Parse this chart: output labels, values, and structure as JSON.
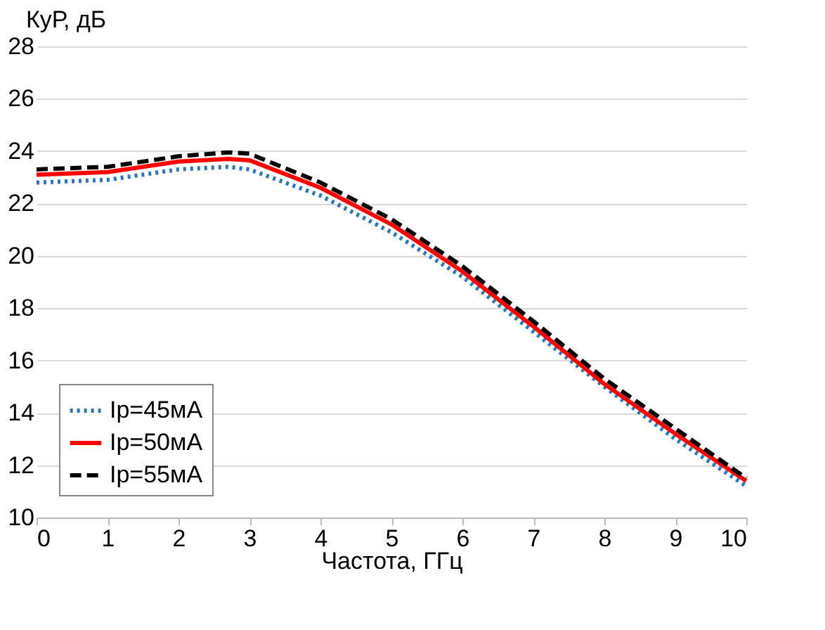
{
  "chart_data": {
    "type": "line",
    "xlabel": "Частота, ГГц",
    "ylabel": "КуР, дБ",
    "x": [
      0,
      1,
      2,
      2.7,
      3,
      4,
      5,
      6,
      7,
      8,
      9,
      10
    ],
    "series": [
      {
        "name": "Ip=45мА",
        "color": "#2e75b6",
        "line_style": "dotted",
        "values": [
          22.8,
          22.9,
          23.3,
          23.4,
          23.3,
          22.3,
          20.9,
          19.2,
          17.1,
          15.0,
          13.0,
          11.2
        ]
      },
      {
        "name": "Ip=50мА",
        "color": "#ff0000",
        "line_style": "solid",
        "values": [
          23.1,
          23.2,
          23.6,
          23.7,
          23.65,
          22.6,
          21.2,
          19.4,
          17.3,
          15.1,
          13.2,
          11.4
        ]
      },
      {
        "name": "Ip=55мА",
        "color": "#000000",
        "line_style": "dashed",
        "values": [
          23.3,
          23.4,
          23.8,
          23.95,
          23.9,
          22.8,
          21.4,
          19.6,
          17.5,
          15.3,
          13.4,
          11.5
        ]
      }
    ],
    "xlim": [
      0,
      10
    ],
    "xticks": [
      0,
      1,
      2,
      3,
      4,
      5,
      6,
      7,
      8,
      9,
      10
    ],
    "ylim": [
      10,
      28
    ],
    "yticks": [
      10,
      12,
      14,
      16,
      18,
      20,
      22,
      24,
      26,
      28
    ],
    "grid": "y",
    "legend": "bottom left",
    "marker": "none"
  }
}
